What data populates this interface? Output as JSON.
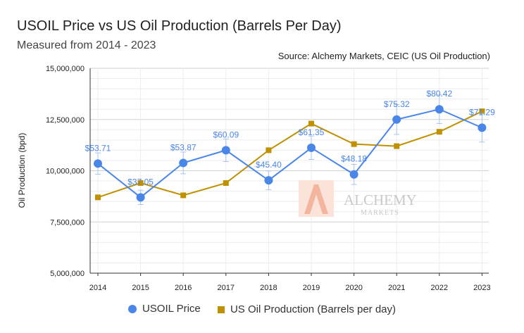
{
  "chart_data": {
    "type": "line",
    "title": "USOIL Price vs US Oil Production (Barrels Per Day)",
    "subtitle": "Measured from 2014 - 2023",
    "source": "Source: Alchemy Markets, CEIC (US Oil Production)",
    "ylabel": "Oil Production (bpd)",
    "xlabel": "",
    "ylim": [
      5000000,
      15000000
    ],
    "yticks": [
      "5,000,000",
      "7,500,000",
      "10,000,000",
      "12,500,000",
      "15,000,000"
    ],
    "ytick_values": [
      5000000,
      7500000,
      10000000,
      12500000,
      15000000
    ],
    "categories": [
      "2014",
      "2015",
      "2016",
      "2017",
      "2018",
      "2019",
      "2020",
      "2021",
      "2022",
      "2023"
    ],
    "grid": true,
    "legend_position": "bottom",
    "series": [
      {
        "name": "USOIL Price",
        "marker": "circle",
        "color": "#4a86e8",
        "values": [
          10350000,
          8700000,
          10380000,
          11000000,
          9530000,
          11120000,
          9820000,
          12500000,
          13000000,
          12100000
        ],
        "labels": [
          "$53.71",
          "$37.05",
          "$53.87",
          "$60.09",
          "$45.40",
          "$61.35",
          "$48.18",
          "$75.32",
          "$80.42",
          "$71.29"
        ],
        "error_low": [
          9830000,
          8350000,
          9850000,
          10450000,
          9070000,
          10550000,
          9330000,
          11770000,
          12300000,
          11400000
        ],
        "error_high": [
          10870000,
          9050000,
          10910000,
          11550000,
          9990000,
          11690000,
          10310000,
          13230000,
          13700000,
          12800000
        ]
      },
      {
        "name": "US Oil Production (Barrels per day)",
        "marker": "square",
        "color": "#bf9000",
        "values": [
          8700000,
          9400000,
          8800000,
          9400000,
          11000000,
          12300000,
          11300000,
          11200000,
          11900000,
          12900000
        ]
      }
    ]
  },
  "watermark": {
    "brand": "ALCHEMY",
    "tagline": "MARKETS"
  }
}
